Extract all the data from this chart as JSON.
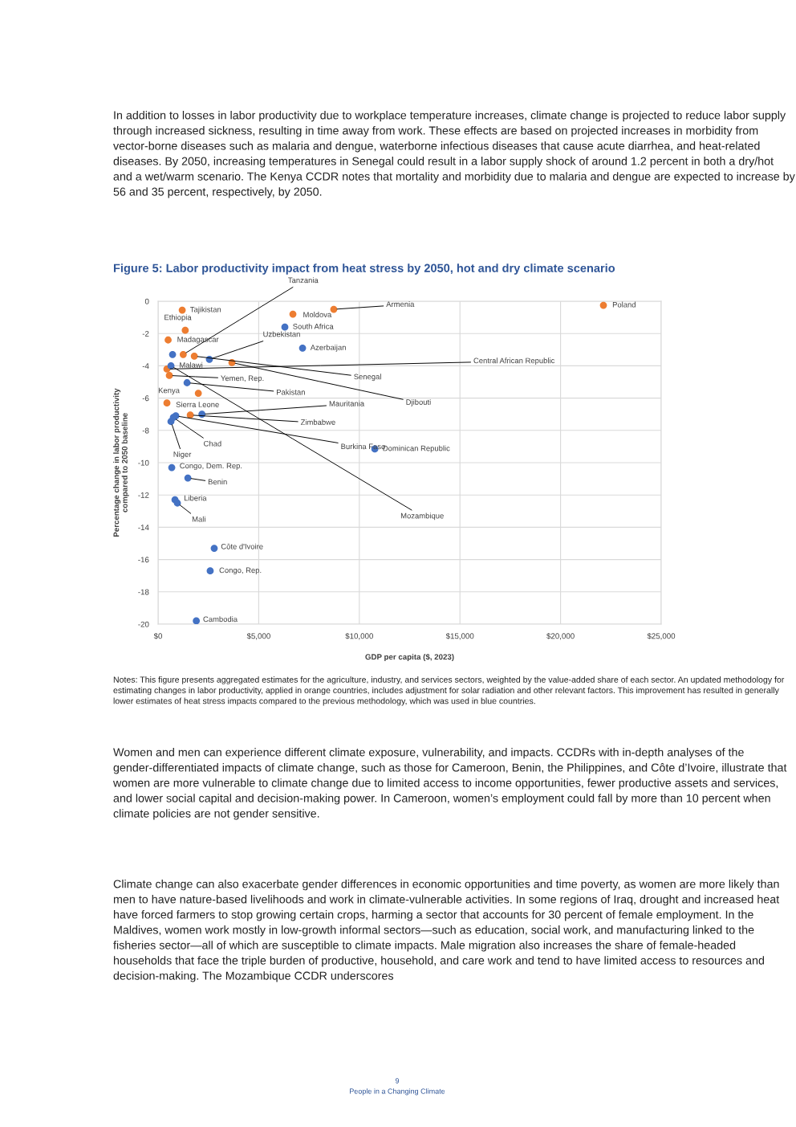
{
  "chart_data": {
    "type": "scatter",
    "title": "Figure 5: Labor productivity impact from heat stress by 2050, hot and dry climate scenario",
    "xlabel": "GDP per capita ($, 2023)",
    "ylabel": "Percentage change in labor productivity\ncompared to 2050 baseline",
    "xlim": [
      0,
      25000
    ],
    "xticks": [
      {
        "value": 0,
        "label": "$0"
      },
      {
        "value": 5000,
        "label": "$5,000"
      },
      {
        "value": 10000,
        "label": "$10,000"
      },
      {
        "value": 15000,
        "label": "$15,000"
      },
      {
        "value": 20000,
        "label": "$20,000"
      },
      {
        "value": 25000,
        "label": "$25,000"
      }
    ],
    "ylim": [
      -20,
      0
    ],
    "yticks": [
      -20,
      -18,
      -16,
      -14,
      -12,
      -10,
      -8,
      -6,
      -4,
      -2,
      0
    ],
    "grid": true,
    "marker": "circle",
    "series": [
      {
        "color": "#ed7d31",
        "x": [
          1200,
          1350,
          500,
          1250,
          1800,
          3670,
          440,
          560,
          2000,
          440,
          1600,
          6700,
          8730,
          22130
        ],
        "values": [
          -0.55,
          -1.8,
          -2.4,
          -3.3,
          -3.4,
          -3.8,
          -4.2,
          -4.6,
          -5.7,
          -6.3,
          -7.05,
          -0.8,
          -0.5,
          -0.25
        ]
      },
      {
        "color": "#4472c4",
        "x": [
          6300,
          7180,
          2550,
          720,
          640,
          1440,
          2180,
          880,
          760,
          640,
          10770,
          680,
          1480,
          840,
          960,
          2790,
          2590,
          1900
        ],
        "values": [
          -1.6,
          -2.9,
          -3.6,
          -3.3,
          -4.0,
          -5.05,
          -7.0,
          -7.1,
          -7.2,
          -7.45,
          -9.15,
          -10.3,
          -10.95,
          -12.3,
          -12.5,
          -15.3,
          -16.7,
          -19.8
        ]
      }
    ],
    "annotations": [
      "In addition to losses in labor productivity due to workplace temperature increases, climate change is projected to reduce labor supply through increased sickness, resulting in time away from work. These effects are based on projected increases in morbidity from vector-borne diseases such as malaria and dengue, waterborne infectious diseases that cause acute diarrhea, and heat-related diseases. By 2050, increasing temperatures in Senegal could result in a labor supply shock of around 1.2 percent in both a dry/hot and a wet/warm scenario. The Kenya CCDR notes that mortality and morbidity due to malaria and dengue are expected to increase by 56 and 35 percent, respectively, by 2050.",
      "Notes: This figure presents aggregated estimates for the agriculture, industry, and services sectors, weighted by the value-added share of each sector. An updated methodology for estimating changes in labor productivity, applied in orange countries, includes adjustment for solar radiation and other relevant factors. This improvement has resulted in generally lower estimates of heat stress impacts compared to the previous methodology, which was used in blue countries.",
      "Women and men can experience different climate exposure, vulnerability, and impacts. CCDRs with in-depth analyses of the gender-differentiated impacts of climate change, such as those for Cameroon, Benin, the Philippines, and Côte d’Ivoire, illustrate that women are more vulnerable to climate change due to limited access to income opportunities, fewer productive assets and services, and lower social capital and decision-making power. In Cameroon, women’s employment could fall by more than 10 percent when climate policies are not gender sensitive.",
      "Climate change can also exacerbate gender differences in economic opportunities and time poverty, as women are more likely than men to have nature-based livelihoods and work in climate-vulnerable activities. In some regions of Iraq, drought and increased heat have forced farmers to stop growing certain crops, harming a sector that accounts for 30 percent of female employment. In the Maldives, women work mostly in low-growth informal sectors—such as education, social work, and manufacturing linked to the fisheries sector—all of which are susceptible to climate impacts. Male migration also increases the share of female-headed households that face the triple burden of productive, household, and care work and tend to have limited access to resources and decision-making. The Mozambique CCDR underscores",
      "9",
      "People in a Changing Climate",
      {
        "text": "Tajikistan",
        "x": 1200,
        "y": -0.55
      },
      {
        "text": "Ethiopia",
        "x": 1350,
        "y": -1.8
      },
      {
        "text": "Madagascar",
        "x": 500,
        "y": -2.4
      },
      {
        "text": "Tanzania",
        "x": 1250,
        "y": -3.3
      },
      {
        "text": "Senegal",
        "x": 1800,
        "y": -3.4
      },
      {
        "text": "Djibouti",
        "x": 3670,
        "y": -3.8
      },
      {
        "text": "Central African Republic",
        "x": 440,
        "y": -4.2
      },
      {
        "text": "Yemen, Rep.",
        "x": 560,
        "y": -4.6
      },
      {
        "text": "Kenya",
        "x": 2000,
        "y": -5.7
      },
      {
        "text": "Sierra Leone",
        "x": 440,
        "y": -6.3
      },
      {
        "text": "Zimbabwe",
        "x": 1600,
        "y": -7.05
      },
      {
        "text": "Moldova",
        "x": 6700,
        "y": -0.8
      },
      {
        "text": "Armenia",
        "x": 8730,
        "y": -0.5
      },
      {
        "text": "Poland",
        "x": 22130,
        "y": -0.25
      },
      {
        "text": "South Africa",
        "x": 6300,
        "y": -1.6
      },
      {
        "text": "Azerbaijan",
        "x": 7180,
        "y": -2.9
      },
      {
        "text": "Uzbekistan",
        "x": 2550,
        "y": -3.6
      },
      {
        "text": "Malawi",
        "x": 720,
        "y": -3.3
      },
      {
        "text": "Mozambique",
        "x": 640,
        "y": -4.0
      },
      {
        "text": "Pakistan",
        "x": 1440,
        "y": -5.05
      },
      {
        "text": "Mauritania",
        "x": 2180,
        "y": -7.0
      },
      {
        "text": "Burkina Faso",
        "x": 880,
        "y": -7.1
      },
      {
        "text": "Chad",
        "x": 760,
        "y": -7.2
      },
      {
        "text": "Niger",
        "x": 640,
        "y": -7.45
      },
      {
        "text": "Dominican Republic",
        "x": 10770,
        "y": -9.15
      },
      {
        "text": "Congo, Dem. Rep.",
        "x": 680,
        "y": -10.3
      },
      {
        "text": "Benin",
        "x": 1480,
        "y": -10.95
      },
      {
        "text": "Liberia",
        "x": 840,
        "y": -12.3
      },
      {
        "text": "Mali",
        "x": 960,
        "y": -12.5
      },
      {
        "text": "Côte d'Ivoire",
        "x": 2790,
        "y": -15.3
      },
      {
        "text": "Congo, Rep.",
        "x": 2590,
        "y": -16.7
      },
      {
        "text": "Cambodia",
        "x": 1900,
        "y": -19.8
      }
    ]
  }
}
